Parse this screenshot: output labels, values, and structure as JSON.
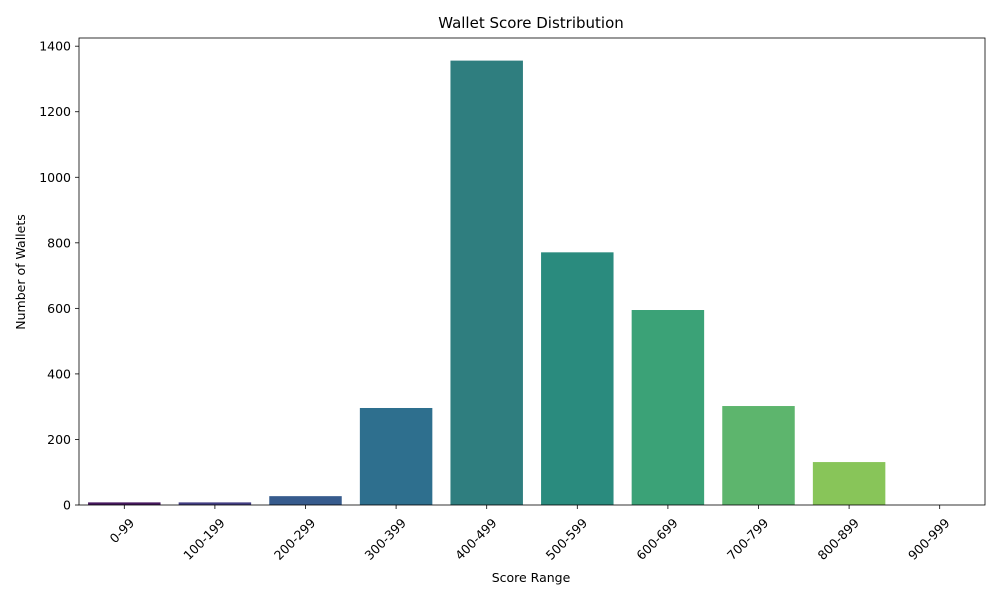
{
  "chart_data": {
    "type": "bar",
    "title": "Wallet Score Distribution",
    "xlabel": "Score Range",
    "ylabel": "Number of Wallets",
    "categories": [
      "0-99",
      "100-199",
      "200-299",
      "300-399",
      "400-499",
      "500-599",
      "600-699",
      "700-799",
      "800-899",
      "900-999"
    ],
    "values": [
      8,
      8,
      27,
      296,
      1356,
      771,
      595,
      302,
      131,
      0
    ],
    "colors": [
      "#46185e",
      "#433e84",
      "#375b8d",
      "#2e6f8e",
      "#2f7e7f",
      "#2a8b7e",
      "#3ba277",
      "#5db56d",
      "#88c559",
      "#d1dd3c"
    ],
    "ylim": [
      0,
      1425
    ],
    "yticks": [
      0,
      200,
      400,
      600,
      800,
      1000,
      1200,
      1400
    ],
    "x_tick_rotation_deg": 45,
    "grid": false,
    "legend": "none"
  }
}
